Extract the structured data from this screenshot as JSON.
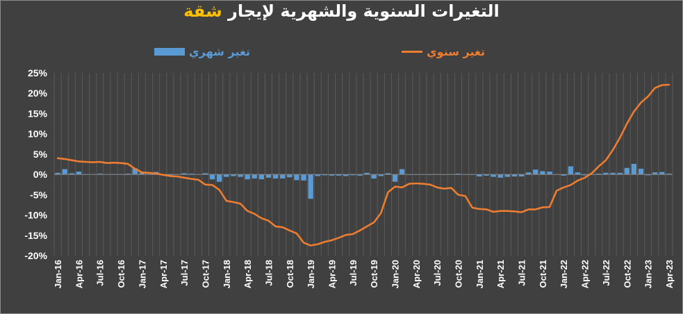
{
  "title": {
    "main": "التغيرات السنوية والشهرية لإيجار",
    "highlight": "شقة",
    "highlight_color": "#ffc000"
  },
  "chart_data": {
    "type": "bar+line",
    "x": [
      "Jan-16",
      "Feb-16",
      "Mar-16",
      "Apr-16",
      "May-16",
      "Jun-16",
      "Jul-16",
      "Aug-16",
      "Sep-16",
      "Oct-16",
      "Nov-16",
      "Dec-16",
      "Jan-17",
      "Feb-17",
      "Mar-17",
      "Apr-17",
      "May-17",
      "Jun-17",
      "Jul-17",
      "Aug-17",
      "Sep-17",
      "Oct-17",
      "Nov-17",
      "Dec-17",
      "Jan-18",
      "Feb-18",
      "Mar-18",
      "Apr-18",
      "May-18",
      "Jun-18",
      "Jul-18",
      "Aug-18",
      "Sep-18",
      "Oct-18",
      "Nov-18",
      "Dec-18",
      "Jan-19",
      "Feb-19",
      "Mar-19",
      "Apr-19",
      "May-19",
      "Jun-19",
      "Jul-19",
      "Aug-19",
      "Sep-19",
      "Oct-19",
      "Nov-19",
      "Dec-19",
      "Jan-20",
      "Feb-20",
      "Mar-20",
      "Apr-20",
      "May-20",
      "Jun-20",
      "Jul-20",
      "Aug-20",
      "Sep-20",
      "Oct-20",
      "Nov-20",
      "Dec-20",
      "Jan-21",
      "Feb-21",
      "Mar-21",
      "Apr-21",
      "May-21",
      "Jun-21",
      "Jul-21",
      "Aug-21",
      "Sep-21",
      "Oct-21",
      "Nov-21",
      "Dec-21",
      "Jan-22",
      "Feb-22",
      "Mar-22",
      "Apr-22",
      "May-22",
      "Jun-22",
      "Jul-22",
      "Aug-22",
      "Sep-22",
      "Oct-22",
      "Nov-22",
      "Dec-22",
      "Jan-23",
      "Feb-23",
      "Mar-23",
      "Apr-23"
    ],
    "tick_labels": [
      "Jan-16",
      "Apr-16",
      "Jul-16",
      "Oct-16",
      "Jan-17",
      "Apr-17",
      "Jul-17",
      "Oct-17",
      "Jan-18",
      "Apr-18",
      "Jul-18",
      "Oct-18",
      "Jan-19",
      "Apr-19",
      "Jul-19",
      "Oct-19",
      "Jan-20",
      "Apr-20",
      "Jul-20",
      "Oct-20",
      "Jan-21",
      "Apr-21",
      "Jul-21",
      "Oct-21",
      "Jan-22",
      "Apr-22",
      "Jul-22",
      "Oct-22",
      "Jan-23",
      "Apr-23"
    ],
    "y_ticks": [
      25,
      20,
      15,
      10,
      5,
      0,
      -5,
      -10,
      -15,
      -20
    ],
    "y_tick_labels": [
      "25%",
      "20%",
      "15%",
      "10%",
      "5%",
      "0%",
      "-5%",
      "-10%",
      "-15%",
      "-20%"
    ],
    "ylim": [
      -20,
      25
    ],
    "grid": "vertical lines at each month",
    "legend_position": "top",
    "series": [
      {
        "name": "تغير شهري",
        "type": "bar",
        "color": "#5b9bd5",
        "values": [
          0.4,
          1.3,
          0.3,
          0.7,
          0.1,
          0.1,
          0.2,
          0.1,
          0.1,
          0.1,
          0.2,
          1.5,
          0.4,
          0.1,
          0.6,
          0.1,
          -0.2,
          0.1,
          0.3,
          0.2,
          0.1,
          0.3,
          -1.2,
          -1.8,
          -0.6,
          -0.4,
          -0.6,
          -1.2,
          -1.0,
          -1.2,
          -0.8,
          -1.0,
          -1.0,
          -0.7,
          -1.4,
          -1.5,
          -6.0,
          -0.4,
          -0.2,
          -0.3,
          -0.3,
          -0.4,
          -0.2,
          -0.3,
          0.4,
          -1.0,
          -0.4,
          0.3,
          -1.8,
          1.3,
          -0.1,
          -0.1,
          0.1,
          -0.1,
          0.1,
          -0.1,
          0.1,
          0.2,
          0.1,
          -0.1,
          -0.5,
          -0.3,
          -0.6,
          -0.8,
          -0.6,
          -0.5,
          -0.5,
          0.5,
          1.2,
          0.8,
          0.7,
          0.1,
          -0.3,
          2.0,
          0.5,
          -0.2,
          -0.1,
          0.2,
          0.4,
          0.4,
          0.4,
          1.6,
          2.6,
          1.4,
          -0.2,
          0.5,
          0.6,
          0.2
        ]
      },
      {
        "name": "تغير سنوي",
        "type": "line",
        "color": "#ed7d31",
        "values": [
          4.0,
          3.8,
          3.5,
          3.2,
          3.1,
          3.0,
          3.1,
          2.8,
          2.9,
          2.8,
          2.6,
          1.4,
          0.5,
          0.4,
          0.2,
          -0.1,
          -0.4,
          -0.5,
          -0.8,
          -1.1,
          -1.3,
          -2.5,
          -2.6,
          -3.8,
          -6.5,
          -6.8,
          -7.2,
          -9.0,
          -9.7,
          -10.8,
          -11.4,
          -12.8,
          -13.0,
          -13.8,
          -14.5,
          -16.8,
          -17.5,
          -17.2,
          -16.6,
          -16.2,
          -15.6,
          -14.9,
          -14.7,
          -13.8,
          -12.8,
          -11.8,
          -9.5,
          -4.4,
          -3.0,
          -3.2,
          -2.3,
          -2.2,
          -2.3,
          -2.5,
          -3.2,
          -3.5,
          -3.3,
          -5.0,
          -5.3,
          -8.2,
          -8.5,
          -8.6,
          -9.2,
          -9.0,
          -9.0,
          -9.1,
          -9.3,
          -8.6,
          -8.6,
          -8.1,
          -8.0,
          -4.0,
          -3.2,
          -2.6,
          -1.5,
          -0.8,
          0.3,
          2.0,
          3.5,
          6.0,
          9.0,
          12.5,
          15.5,
          17.7,
          19.2,
          21.3,
          22.0,
          22.1
        ]
      }
    ]
  }
}
